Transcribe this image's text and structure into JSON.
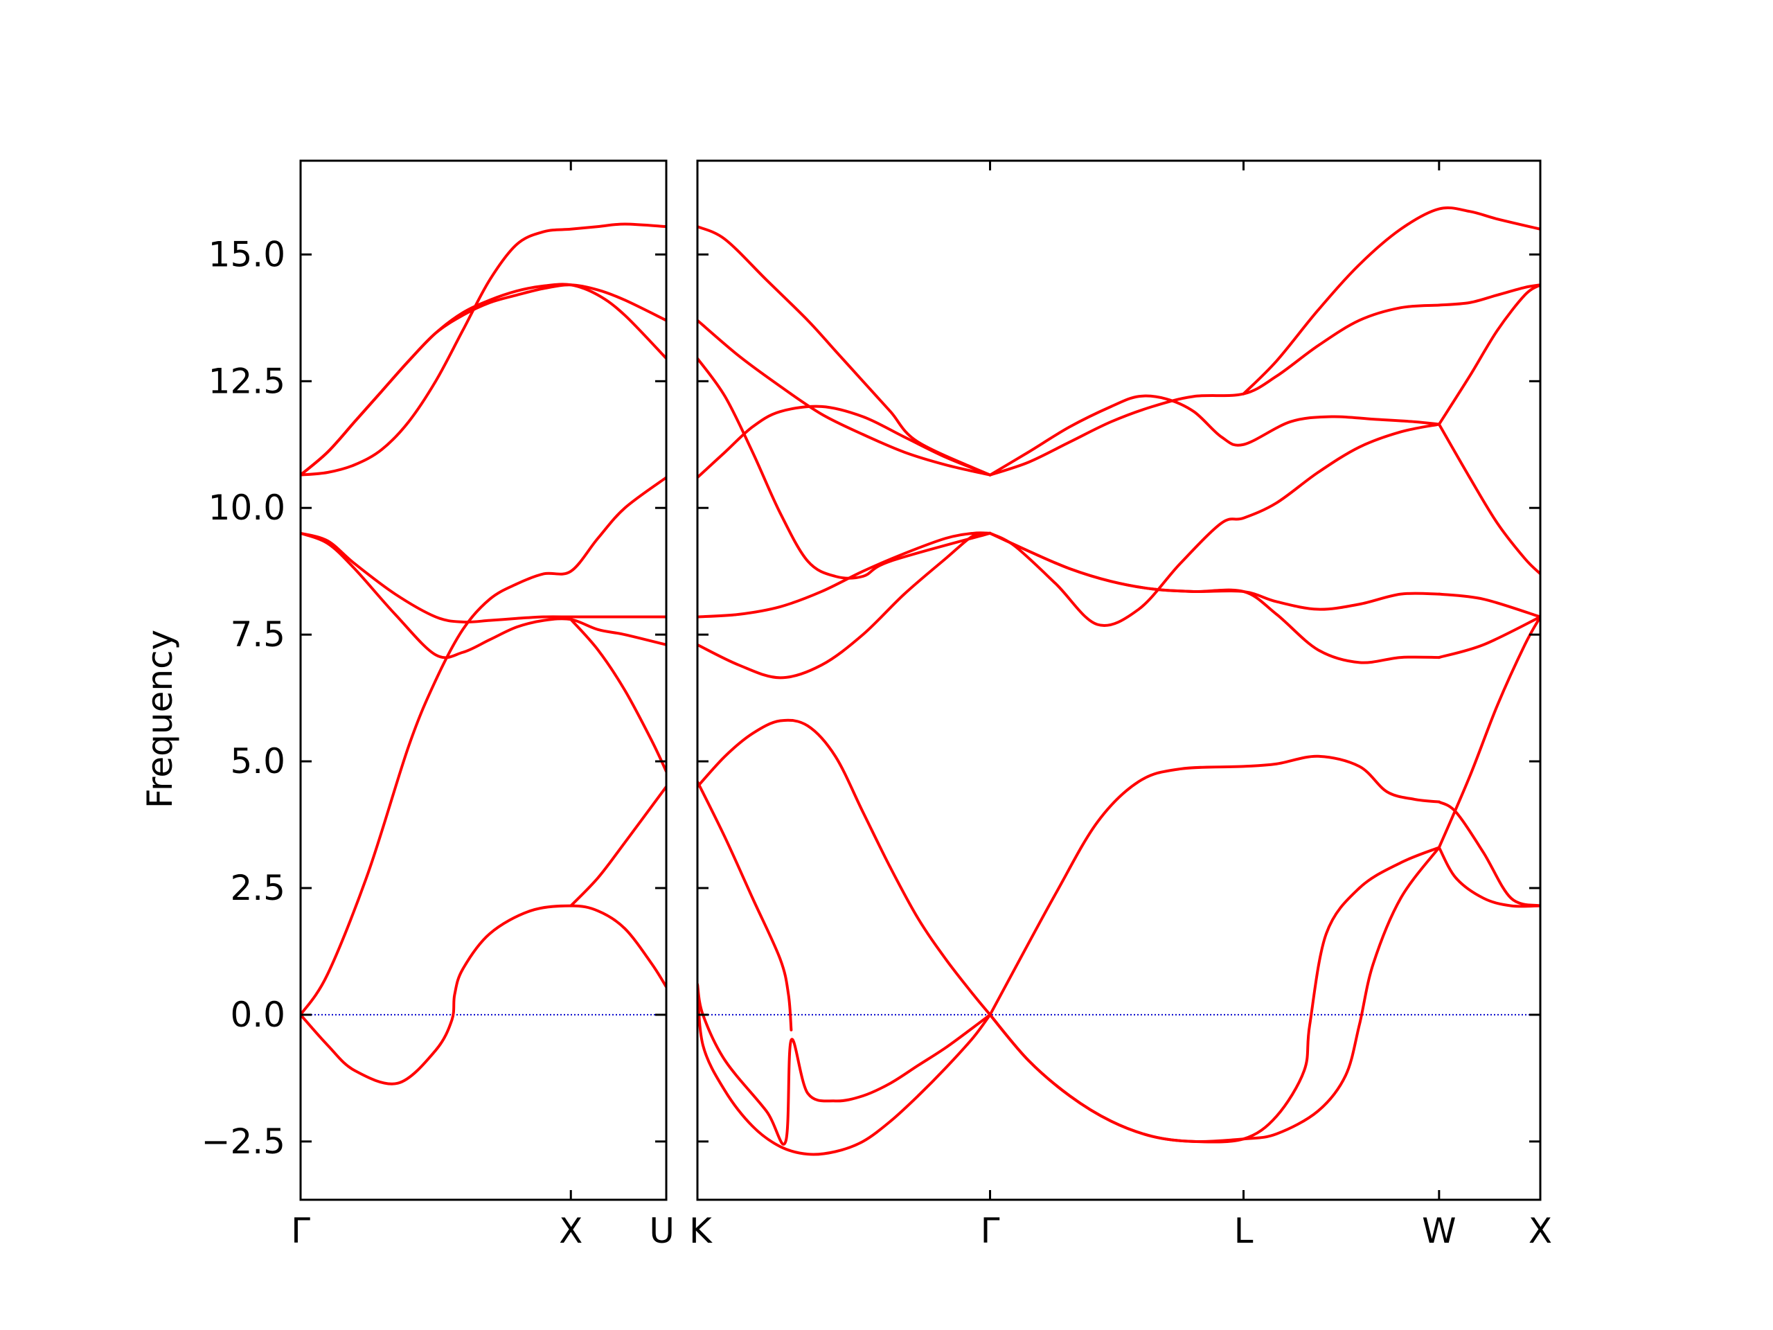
{
  "chart_data": {
    "type": "line",
    "ylabel": "Frequency",
    "xlabel": "",
    "ylim": [
      -3.65,
      16.85
    ],
    "yticks": [
      -2.5,
      0.0,
      2.5,
      5.0,
      7.5,
      10.0,
      12.5,
      15.0
    ],
    "ytick_labels": [
      "−2.5",
      "0.0",
      "2.5",
      "5.0",
      "7.5",
      "10.0",
      "12.5",
      "15.0"
    ],
    "grid": false,
    "line_color": "#ff0000",
    "zero_line_color": "#0000cc",
    "panels": [
      {
        "xlim": [
          0,
          1.353
        ],
        "kpoints": [
          {
            "label": "Γ",
            "x": 0
          },
          {
            "label": "X",
            "x": 1.0
          },
          {
            "label": "U",
            "x": 1.353
          }
        ],
        "series": [
          {
            "x": [
              0,
              0.1,
              0.2,
              0.36,
              0.5,
              0.56,
              0.57,
              0.6,
              0.7,
              0.85,
              1.0,
              1.1,
              1.2,
              1.3,
              1.353
            ],
            "y": [
              0.0,
              -0.6,
              -1.1,
              -1.35,
              -0.7,
              -0.1,
              0.4,
              0.9,
              1.6,
              2.05,
              2.15,
              2.05,
              1.7,
              1.0,
              0.55
            ]
          },
          {
            "x": [
              0,
              0.1,
              0.25,
              0.4,
              0.5,
              0.6,
              0.7,
              0.8,
              0.9,
              1.0,
              1.1,
              1.2,
              1.353
            ],
            "y": [
              0.0,
              0.8,
              2.8,
              5.3,
              6.6,
              7.6,
              8.2,
              8.5,
              8.7,
              8.75,
              9.4,
              10.0,
              10.6
            ]
          },
          {
            "x": [
              0,
              0.1,
              0.2,
              0.35,
              0.5,
              0.6,
              0.7,
              0.8,
              0.9,
              1.0,
              1.1,
              1.2,
              1.353
            ],
            "y": [
              9.5,
              9.3,
              8.8,
              7.9,
              7.1,
              7.15,
              7.4,
              7.65,
              7.78,
              7.8,
              7.6,
              7.5,
              7.3
            ]
          },
          {
            "x": [
              0,
              0.1,
              0.2,
              0.35,
              0.5,
              0.6,
              0.7,
              0.8,
              0.9,
              1.0,
              1.1,
              1.2,
              1.353
            ],
            "y": [
              9.5,
              9.35,
              8.9,
              8.3,
              7.85,
              7.75,
              7.78,
              7.82,
              7.85,
              7.85,
              7.85,
              7.85,
              7.85
            ]
          },
          {
            "x": [
              0,
              0.1,
              0.2,
              0.3,
              0.4,
              0.5,
              0.6,
              0.7,
              0.8,
              0.9,
              1.0,
              1.1,
              1.2,
              1.353
            ],
            "y": [
              10.65,
              10.7,
              10.85,
              11.15,
              11.7,
              12.5,
              13.5,
              14.5,
              15.2,
              15.45,
              15.5,
              15.55,
              15.6,
              15.55
            ]
          },
          {
            "x": [
              0,
              0.1,
              0.2,
              0.3,
              0.4,
              0.5,
              0.6,
              0.7,
              0.8,
              0.9,
              1.0,
              1.1,
              1.2,
              1.353
            ],
            "y": [
              10.65,
              11.1,
              11.7,
              12.3,
              12.9,
              13.45,
              13.85,
              14.1,
              14.28,
              14.38,
              14.4,
              14.2,
              13.8,
              12.95
            ]
          },
          {
            "x": [
              0,
              0.1,
              0.2,
              0.3,
              0.4,
              0.5,
              0.6,
              0.7,
              0.8,
              0.9,
              1.0,
              1.1,
              1.2,
              1.353
            ],
            "y": [
              10.65,
              11.1,
              11.7,
              12.3,
              12.9,
              13.45,
              13.8,
              14.05,
              14.2,
              14.33,
              14.4,
              14.3,
              14.1,
              13.7
            ]
          },
          {
            "x": [
              1.0,
              1.1,
              1.2,
              1.353
            ],
            "y": [
              2.15,
              2.7,
              3.4,
              4.5
            ]
          },
          {
            "x": [
              1.0,
              1.1,
              1.2,
              1.3,
              1.353
            ],
            "y": [
              7.8,
              7.2,
              6.4,
              5.4,
              4.8
            ]
          }
        ]
      },
      {
        "xlim": [
          0,
          3.056
        ],
        "kpoints": [
          {
            "label": "K",
            "x": 0
          },
          {
            "label": "Γ",
            "x": 1.061
          },
          {
            "label": "L",
            "x": 1.98
          },
          {
            "label": "W",
            "x": 2.689
          },
          {
            "label": "X",
            "x": 3.056
          }
        ],
        "series": [
          {
            "x": [
              0,
              0.02,
              0.1,
              0.25,
              0.32,
              0.34,
              0.4,
              0.5,
              0.6,
              0.7,
              0.8,
              0.9,
              1.0,
              1.061
            ],
            "y": [
              0.6,
              0.0,
              -0.9,
              -1.9,
              -2.5,
              -0.5,
              -1.55,
              -1.7,
              -1.6,
              -1.35,
              -1.0,
              -0.65,
              -0.25,
              0.0
            ]
          },
          {
            "x": [
              0,
              0.02,
              0.1,
              0.2,
              0.3,
              0.4,
              0.5,
              0.6,
              0.7,
              0.8,
              0.9,
              1.0,
              1.061
            ],
            "y": [
              0.6,
              -0.6,
              -1.5,
              -2.2,
              -2.6,
              -2.75,
              -2.7,
              -2.5,
              -2.1,
              -1.6,
              -1.05,
              -0.45,
              0.0
            ]
          },
          {
            "x": [
              0,
              0.1,
              0.2,
              0.3,
              0.33,
              0.34
            ],
            "y": [
              4.6,
              3.5,
              2.3,
              1.1,
              0.4,
              -0.3
            ]
          },
          {
            "x": [
              0,
              0.1,
              0.2,
              0.3,
              0.4,
              0.5,
              0.6,
              0.7,
              0.8,
              0.9,
              1.0,
              1.061
            ],
            "y": [
              4.5,
              5.1,
              5.55,
              5.8,
              5.7,
              5.1,
              4.0,
              2.9,
              1.9,
              1.1,
              0.4,
              0.0
            ]
          },
          {
            "x": [
              1.061,
              1.15,
              1.3,
              1.45,
              1.6,
              1.75,
              1.98,
              2.1,
              2.25,
              2.4,
              2.5,
              2.6,
              2.689
            ],
            "y": [
              0.0,
              0.9,
              2.4,
              3.8,
              4.6,
              4.85,
              4.9,
              4.95,
              5.1,
              4.9,
              4.4,
              4.25,
              4.2
            ]
          },
          {
            "x": [
              1.061,
              1.2,
              1.35,
              1.5,
              1.65,
              1.8,
              1.98,
              2.1,
              2.2,
              2.22,
              2.28,
              2.4,
              2.55,
              2.689
            ],
            "y": [
              0.0,
              -0.9,
              -1.6,
              -2.1,
              -2.4,
              -2.5,
              -2.45,
              -2.0,
              -1.1,
              -0.2,
              1.6,
              2.5,
              3.0,
              3.3
            ]
          },
          {
            "x": [
              1.061,
              1.2,
              1.35,
              1.5,
              1.65,
              1.8,
              1.98,
              2.1,
              2.25,
              2.35,
              2.4,
              2.45,
              2.55,
              2.689
            ],
            "y": [
              0.0,
              -0.9,
              -1.6,
              -2.1,
              -2.4,
              -2.5,
              -2.45,
              -2.35,
              -1.9,
              -1.2,
              -0.2,
              1.0,
              2.3,
              3.3
            ]
          },
          {
            "x": [
              2.689,
              2.8,
              2.9,
              3.0,
              3.056
            ],
            "y": [
              3.3,
              4.7,
              6.1,
              7.3,
              7.85
            ]
          },
          {
            "x": [
              2.689,
              2.75,
              2.85,
              2.95,
              3.056
            ],
            "y": [
              4.2,
              4.0,
              3.2,
              2.3,
              2.15
            ]
          },
          {
            "x": [
              2.689,
              2.75,
              2.85,
              2.95,
              3.056
            ],
            "y": [
              3.3,
              2.7,
              2.3,
              2.15,
              2.15
            ]
          },
          {
            "x": [
              0,
              0.15,
              0.3,
              0.45,
              0.6,
              0.75,
              0.9,
              1.0,
              1.061
            ],
            "y": [
              7.85,
              7.9,
              8.05,
              8.35,
              8.75,
              9.1,
              9.4,
              9.5,
              9.5
            ]
          },
          {
            "x": [
              0,
              0.15,
              0.3,
              0.45,
              0.6,
              0.75,
              0.9,
              1.0,
              1.061
            ],
            "y": [
              7.3,
              6.9,
              6.65,
              6.9,
              7.5,
              8.3,
              9.0,
              9.45,
              9.5
            ]
          },
          {
            "x": [
              1.061,
              1.15,
              1.3,
              1.45,
              1.6,
              1.75,
              1.9,
              1.98,
              2.1,
              2.25,
              2.4,
              2.55,
              2.689
            ],
            "y": [
              9.5,
              9.25,
              8.5,
              7.7,
              8.0,
              8.9,
              9.7,
              9.8,
              10.1,
              10.7,
              11.2,
              11.5,
              11.65
            ]
          },
          {
            "x": [
              1.061,
              1.2,
              1.35,
              1.5,
              1.65,
              1.8,
              1.98,
              2.1,
              2.25,
              2.4,
              2.55,
              2.689
            ],
            "y": [
              9.5,
              9.15,
              8.8,
              8.55,
              8.4,
              8.35,
              8.35,
              8.15,
              8.0,
              8.1,
              8.3,
              8.3
            ]
          },
          {
            "x": [
              1.061,
              1.2,
              1.35,
              1.5,
              1.65,
              1.8,
              1.98,
              2.1,
              2.25,
              2.4,
              2.55,
              2.689
            ],
            "y": [
              9.5,
              9.15,
              8.8,
              8.55,
              8.4,
              8.35,
              8.35,
              7.9,
              7.2,
              6.95,
              7.05,
              7.05
            ]
          },
          {
            "x": [
              2.689,
              2.85,
              3.056
            ],
            "y": [
              8.3,
              8.2,
              7.85
            ]
          },
          {
            "x": [
              2.689,
              2.85,
              3.056
            ],
            "y": [
              7.05,
              7.3,
              7.85
            ]
          },
          {
            "x": [
              0,
              0.1,
              0.25,
              0.4,
              0.5,
              0.6,
              0.7,
              0.8,
              1.061
            ],
            "y": [
              15.55,
              15.3,
              14.5,
              13.7,
              13.1,
              12.5,
              11.9,
              11.3,
              10.65
            ]
          },
          {
            "x": [
              0,
              0.15,
              0.3,
              0.45,
              0.6,
              0.75,
              0.9,
              1.061
            ],
            "y": [
              13.7,
              13.0,
              12.4,
              11.85,
              11.45,
              11.1,
              10.85,
              10.65
            ]
          },
          {
            "x": [
              0,
              0.1,
              0.2,
              0.3,
              0.4,
              0.5,
              0.6,
              0.7,
              1.061
            ],
            "y": [
              12.95,
              12.2,
              11.1,
              9.9,
              8.95,
              8.65,
              8.65,
              8.95,
              9.5
            ]
          },
          {
            "x": [
              0,
              0.1,
              0.2,
              0.3,
              0.45,
              0.6,
              0.75,
              0.9,
              1.061
            ],
            "y": [
              10.6,
              11.1,
              11.6,
              11.9,
              12.0,
              11.8,
              11.4,
              11.0,
              10.65
            ]
          },
          {
            "x": [
              1.061,
              1.2,
              1.35,
              1.5,
              1.6,
              1.7,
              1.8,
              1.9,
              1.98,
              2.15,
              2.3,
              2.45,
              2.6,
              2.689
            ],
            "y": [
              10.65,
              11.1,
              11.6,
              12.0,
              12.2,
              12.15,
              11.9,
              11.4,
              11.25,
              11.7,
              11.8,
              11.75,
              11.7,
              11.65
            ]
          },
          {
            "x": [
              1.061,
              1.2,
              1.35,
              1.5,
              1.65,
              1.8,
              1.98,
              2.1,
              2.25,
              2.4,
              2.55,
              2.689
            ],
            "y": [
              10.65,
              10.9,
              11.3,
              11.7,
              12.0,
              12.2,
              12.25,
              12.6,
              13.2,
              13.7,
              13.95,
              14.0
            ]
          },
          {
            "x": [
              1.98,
              2.1,
              2.25,
              2.4,
              2.55,
              2.689,
              2.8,
              2.9,
              3.056
            ],
            "y": [
              12.25,
              12.9,
              13.9,
              14.8,
              15.5,
              15.9,
              15.85,
              15.7,
              15.5
            ]
          },
          {
            "x": [
              2.689,
              2.8,
              2.9,
              3.0,
              3.056
            ],
            "y": [
              14.0,
              14.05,
              14.2,
              14.35,
              14.4
            ]
          },
          {
            "x": [
              2.689,
              2.8,
              2.9,
              3.0,
              3.056
            ],
            "y": [
              11.65,
              12.6,
              13.5,
              14.2,
              14.4
            ]
          },
          {
            "x": [
              2.689,
              2.8,
              2.9,
              3.0,
              3.056
            ],
            "y": [
              11.65,
              10.6,
              9.7,
              9.0,
              8.7
            ]
          }
        ]
      }
    ]
  }
}
